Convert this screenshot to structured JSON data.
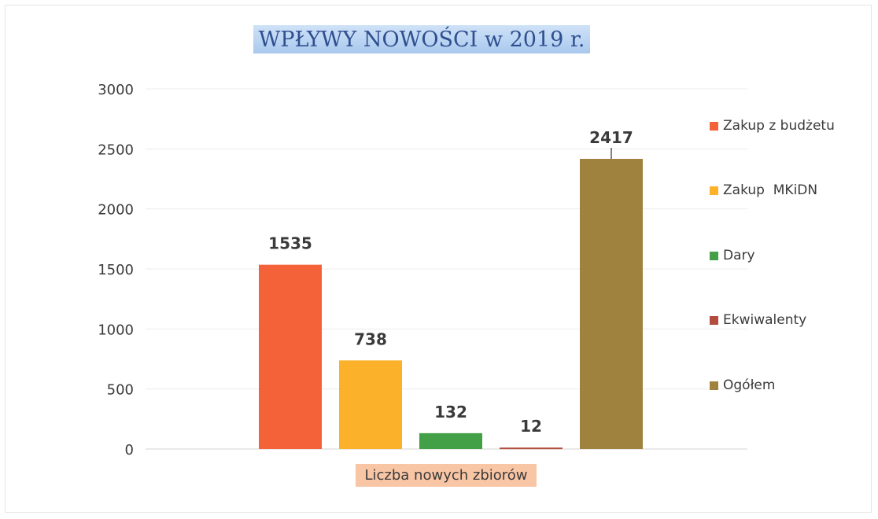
{
  "chart_data": {
    "type": "bar",
    "title": "WPŁYWY NOWOŚCI w 2019 r.",
    "categories": [
      "Liczba nowych zbiorów"
    ],
    "series": [
      {
        "name": "Zakup z budżetu",
        "values": [
          1535
        ],
        "color": "#f4623a"
      },
      {
        "name": "Zakup  MKiDN",
        "values": [
          738
        ],
        "color": "#fbb22a"
      },
      {
        "name": "Dary",
        "values": [
          132
        ],
        "color": "#44a047"
      },
      {
        "name": "Ekwiwalenty",
        "values": [
          12
        ],
        "color": "#b24c3f"
      },
      {
        "name": "Ogółem",
        "values": [
          2417
        ],
        "color": "#a0823f"
      }
    ],
    "data_labels": [
      "1535",
      "738",
      "132",
      "12",
      "2417"
    ],
    "ylim": [
      0,
      3000
    ],
    "yticks": [
      0,
      500,
      1000,
      1500,
      2000,
      2500,
      3000
    ],
    "ytick_labels": [
      "0",
      "500",
      "1000",
      "1500",
      "2000",
      "2500",
      "3000"
    ],
    "grid": true,
    "legend_position": "right"
  }
}
